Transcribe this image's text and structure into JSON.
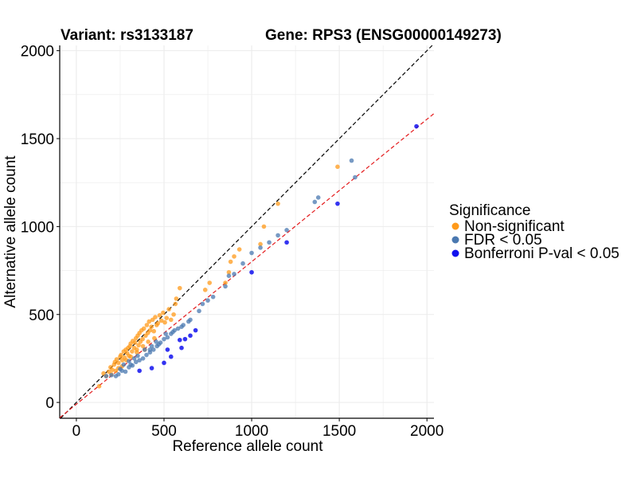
{
  "chart_data": {
    "type": "scatter",
    "title_left": "Variant: rs3133187",
    "title_right": "Gene: RPS3 (ENSG00000149273)",
    "xlabel": "Reference allele count",
    "ylabel": "Alternative allele count",
    "xlim": [
      -95,
      2040
    ],
    "ylim": [
      -90,
      2030
    ],
    "x_ticks": [
      0,
      500,
      1000,
      1500,
      2000
    ],
    "y_ticks": [
      0,
      500,
      1000,
      1500,
      2000
    ],
    "grid": true,
    "reference_lines": [
      {
        "name": "identity",
        "slope": 1.0,
        "intercept": 0,
        "color": "#000000",
        "style": "dashed"
      },
      {
        "name": "fit",
        "slope": 0.81,
        "intercept": -10,
        "color": "#e41a1c",
        "style": "dashed"
      }
    ],
    "legend": {
      "title": "Significance",
      "position": "right",
      "entries": [
        {
          "label": "Non-significant",
          "color": "#ff9a1a"
        },
        {
          "label": "FDR < 0.05",
          "color": "#4a78b0"
        },
        {
          "label": "Bonferroni P-val < 0.05",
          "color": "#1010ee"
        }
      ]
    },
    "series": [
      {
        "name": "Non-significant",
        "color": "#ff9a1a",
        "points": [
          [
            130,
            92
          ],
          [
            155,
            165
          ],
          [
            170,
            150
          ],
          [
            185,
            175
          ],
          [
            195,
            200
          ],
          [
            205,
            185
          ],
          [
            215,
            215
          ],
          [
            220,
            230
          ],
          [
            230,
            245
          ],
          [
            240,
            225
          ],
          [
            250,
            260
          ],
          [
            255,
            270
          ],
          [
            262,
            240
          ],
          [
            270,
            290
          ],
          [
            275,
            255
          ],
          [
            282,
            300
          ],
          [
            290,
            280
          ],
          [
            295,
            310
          ],
          [
            300,
            265
          ],
          [
            305,
            320
          ],
          [
            310,
            335
          ],
          [
            318,
            290
          ],
          [
            322,
            350
          ],
          [
            330,
            310
          ],
          [
            335,
            340
          ],
          [
            340,
            365
          ],
          [
            345,
            300
          ],
          [
            350,
            380
          ],
          [
            355,
            325
          ],
          [
            360,
            395
          ],
          [
            365,
            345
          ],
          [
            372,
            410
          ],
          [
            378,
            360
          ],
          [
            385,
            420
          ],
          [
            390,
            300
          ],
          [
            395,
            380
          ],
          [
            402,
            440
          ],
          [
            408,
            395
          ],
          [
            415,
            460
          ],
          [
            420,
            410
          ],
          [
            428,
            430
          ],
          [
            435,
            470
          ],
          [
            442,
            405
          ],
          [
            450,
            485
          ],
          [
            458,
            440
          ],
          [
            465,
            450
          ],
          [
            475,
            495
          ],
          [
            485,
            465
          ],
          [
            495,
            510
          ],
          [
            505,
            455
          ],
          [
            515,
            480
          ],
          [
            528,
            530
          ],
          [
            540,
            470
          ],
          [
            555,
            500
          ],
          [
            565,
            560
          ],
          [
            570,
            590
          ],
          [
            590,
            650
          ],
          [
            735,
            640
          ],
          [
            760,
            680
          ],
          [
            850,
            680
          ],
          [
            870,
            740
          ],
          [
            880,
            800
          ],
          [
            900,
            830
          ],
          [
            930,
            870
          ],
          [
            1050,
            900
          ],
          [
            1070,
            1000
          ],
          [
            1150,
            1130
          ],
          [
            1490,
            1340
          ],
          [
            240,
            195
          ],
          [
            260,
            205
          ],
          [
            200,
            160
          ],
          [
            225,
            180
          ],
          [
            285,
            240
          ],
          [
            310,
            260
          ],
          [
            345,
            285
          ],
          [
            380,
            320
          ],
          [
            410,
            345
          ],
          [
            445,
            365
          ]
        ]
      },
      {
        "name": "FDR < 0.05",
        "color": "#4a78b0",
        "points": [
          [
            170,
            150
          ],
          [
            200,
            155
          ],
          [
            225,
            150
          ],
          [
            240,
            160
          ],
          [
            260,
            180
          ],
          [
            280,
            175
          ],
          [
            300,
            200
          ],
          [
            320,
            210
          ],
          [
            340,
            230
          ],
          [
            360,
            240
          ],
          [
            380,
            250
          ],
          [
            400,
            270
          ],
          [
            420,
            285
          ],
          [
            440,
            300
          ],
          [
            460,
            320
          ],
          [
            480,
            340
          ],
          [
            500,
            360
          ],
          [
            520,
            370
          ],
          [
            540,
            390
          ],
          [
            560,
            410
          ],
          [
            580,
            420
          ],
          [
            610,
            440
          ],
          [
            640,
            460
          ],
          [
            700,
            520
          ],
          [
            720,
            560
          ],
          [
            750,
            580
          ],
          [
            780,
            600
          ],
          [
            850,
            660
          ],
          [
            870,
            720
          ],
          [
            900,
            730
          ],
          [
            950,
            790
          ],
          [
            1000,
            850
          ],
          [
            1050,
            880
          ],
          [
            1100,
            910
          ],
          [
            1150,
            950
          ],
          [
            1200,
            980
          ],
          [
            1360,
            1140
          ],
          [
            1380,
            1165
          ],
          [
            1570,
            1375
          ],
          [
            1590,
            1280
          ],
          [
            300,
            235
          ],
          [
            330,
            250
          ],
          [
            350,
            265
          ],
          [
            390,
            300
          ],
          [
            430,
            320
          ],
          [
            470,
            330
          ],
          [
            510,
            390
          ],
          [
            550,
            400
          ],
          [
            600,
            430
          ],
          [
            650,
            470
          ],
          [
            250,
            190
          ],
          [
            270,
            215
          ],
          [
            310,
            215
          ],
          [
            420,
            300
          ],
          [
            455,
            345
          ]
        ]
      },
      {
        "name": "Bonferroni P-val < 0.05",
        "color": "#1010ee",
        "points": [
          [
            360,
            180
          ],
          [
            430,
            195
          ],
          [
            500,
            225
          ],
          [
            540,
            260
          ],
          [
            600,
            310
          ],
          [
            620,
            360
          ],
          [
            650,
            380
          ],
          [
            680,
            410
          ],
          [
            1000,
            740
          ],
          [
            1200,
            910
          ],
          [
            1490,
            1130
          ],
          [
            1940,
            1570
          ],
          [
            520,
            300
          ],
          [
            590,
            355
          ]
        ]
      }
    ]
  }
}
